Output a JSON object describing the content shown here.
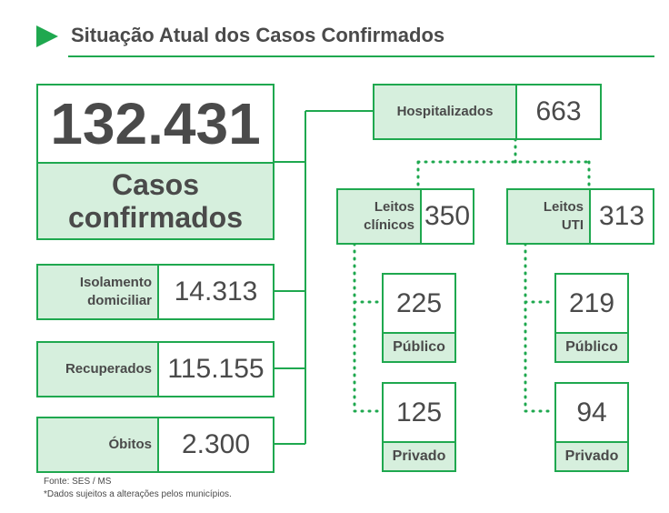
{
  "header": {
    "title": "Situação Atual dos Casos Confirmados"
  },
  "total": {
    "value": "132.431",
    "label_lines": [
      "Casos",
      "confirmados"
    ]
  },
  "outcomes": [
    {
      "label_lines": [
        "Isolamento",
        "domiciliar"
      ],
      "value": "14.313"
    },
    {
      "label_lines": [
        "Recuperados"
      ],
      "value": "115.155"
    },
    {
      "label_lines": [
        "Óbitos"
      ],
      "value": "2.300"
    }
  ],
  "hospital": {
    "label": "Hospitalizados",
    "value": "663",
    "beds": [
      {
        "label_lines": [
          "Leitos",
          "clínicos"
        ],
        "value": "350",
        "split": [
          {
            "value": "225",
            "label": "Público"
          },
          {
            "value": "125",
            "label": "Privado"
          }
        ]
      },
      {
        "label_lines": [
          "Leitos",
          "UTI"
        ],
        "value": "313",
        "split": [
          {
            "value": "219",
            "label": "Público"
          },
          {
            "value": "94",
            "label": "Privado"
          }
        ]
      }
    ]
  },
  "footer": {
    "source": "Fonte: SES / MS",
    "note": "*Dados sujeitos a alterações pelos municípios."
  }
}
